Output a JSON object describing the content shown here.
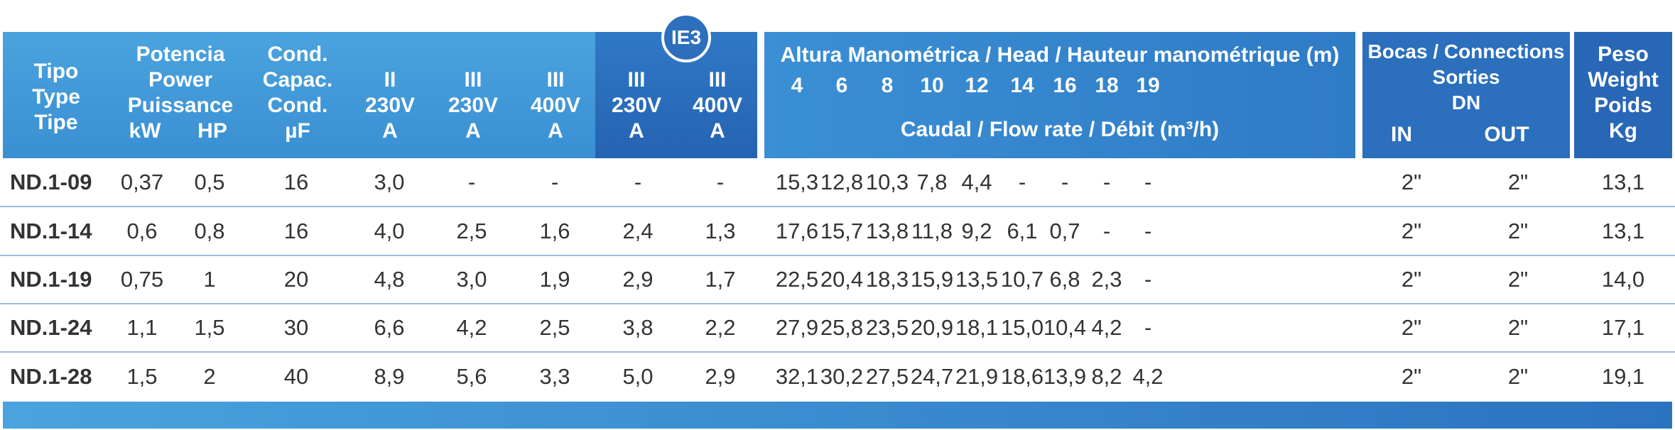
{
  "header": {
    "tipo": [
      "Tipo",
      "Type",
      "Tipe"
    ],
    "potencia": [
      "Potencia",
      "Power",
      "Puissance"
    ],
    "kw": "kW",
    "hp": "HP",
    "cond": [
      "Cond.",
      "Capac.",
      "Cond.",
      "µF"
    ],
    "col_ii_230": [
      "II",
      "230V",
      "A"
    ],
    "col_iii_230": [
      "III",
      "230V",
      "A"
    ],
    "col_iii_400": [
      "III",
      "400V",
      "A"
    ],
    "ie3_badge": "IE3",
    "ie3_230": [
      "III",
      "230V",
      "A"
    ],
    "ie3_400": [
      "III",
      "400V",
      "A"
    ],
    "altura_title": "Altura Manométrica / Head / Hauteur manométrique (m)",
    "heads": [
      "4",
      "6",
      "8",
      "10",
      "12",
      "14",
      "16",
      "18",
      "19"
    ],
    "caudal_title": "Caudal / Flow rate / Débit (m³/h)",
    "bocas": [
      "Bocas / Connections",
      "Sorties",
      "DN"
    ],
    "in": "IN",
    "out": "OUT",
    "peso": [
      "Peso",
      "Weight",
      "Poids",
      "Kg"
    ]
  },
  "rows": [
    {
      "model": "ND.1-09",
      "kw": "0,37",
      "hp": "0,5",
      "cond": "16",
      "a1": "3,0",
      "a2": "-",
      "a3": "-",
      "e1": "-",
      "e2": "-",
      "flow": [
        "15,3",
        "12,8",
        "10,3",
        "7,8",
        "4,4",
        "-",
        "-",
        "-",
        "-"
      ],
      "in": "2\"",
      "out": "2\"",
      "kg": "13,1"
    },
    {
      "model": "ND.1-14",
      "kw": "0,6",
      "hp": "0,8",
      "cond": "16",
      "a1": "4,0",
      "a2": "2,5",
      "a3": "1,6",
      "e1": "2,4",
      "e2": "1,3",
      "flow": [
        "17,6",
        "15,7",
        "13,8",
        "11,8",
        "9,2",
        "6,1",
        "0,7",
        "-",
        "-"
      ],
      "in": "2\"",
      "out": "2\"",
      "kg": "13,1"
    },
    {
      "model": "ND.1-19",
      "kw": "0,75",
      "hp": "1",
      "cond": "20",
      "a1": "4,8",
      "a2": "3,0",
      "a3": "1,9",
      "e1": "2,9",
      "e2": "1,7",
      "flow": [
        "22,5",
        "20,4",
        "18,3",
        "15,9",
        "13,5",
        "10,7",
        "6,8",
        "2,3",
        "-"
      ],
      "in": "2\"",
      "out": "2\"",
      "kg": "14,0"
    },
    {
      "model": "ND.1-24",
      "kw": "1,1",
      "hp": "1,5",
      "cond": "30",
      "a1": "6,6",
      "a2": "4,2",
      "a3": "2,5",
      "e1": "3,8",
      "e2": "2,2",
      "flow": [
        "27,9",
        "25,8",
        "23,5",
        "20,9",
        "18,1",
        "15,0",
        "10,4",
        "4,2",
        "-"
      ],
      "in": "2\"",
      "out": "2\"",
      "kg": "17,1"
    },
    {
      "model": "ND.1-28",
      "kw": "1,5",
      "hp": "2",
      "cond": "40",
      "a1": "8,9",
      "a2": "5,6",
      "a3": "3,3",
      "e1": "5,0",
      "e2": "2,9",
      "flow": [
        "32,1",
        "30,2",
        "27,5",
        "24,7",
        "21,9",
        "18,6",
        "13,9",
        "8,2",
        "4,2"
      ],
      "in": "2\"",
      "out": "2\"",
      "kg": "19,1"
    }
  ]
}
